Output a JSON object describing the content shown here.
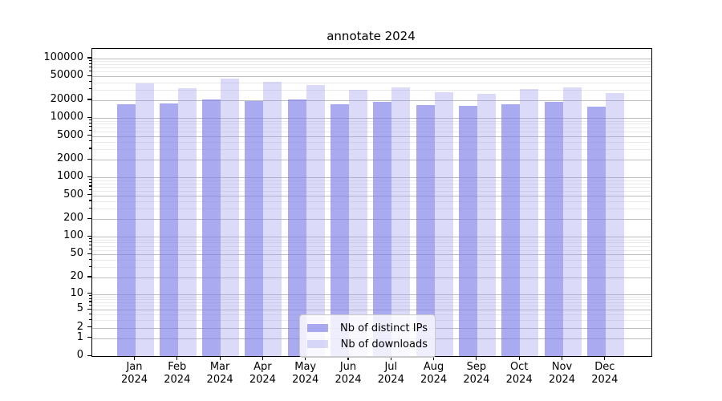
{
  "figure": {
    "background": "#ffffff",
    "plot_background": "#ffffff",
    "spine_color": "#000000"
  },
  "chart_data": {
    "type": "bar",
    "title": "annotate 2024",
    "categories": [
      "Jan",
      "Feb",
      "Mar",
      "Apr",
      "May",
      "Jun",
      "Jul",
      "Aug",
      "Sep",
      "Oct",
      "Nov",
      "Dec"
    ],
    "x_year_label": "2024",
    "series": [
      {
        "name": "Nb of distinct IPs",
        "color": "rgba(124,124,232,0.65)",
        "values": [
          17000,
          17500,
          20500,
          19400,
          20700,
          17100,
          18800,
          16400,
          16200,
          17200,
          18800,
          15600
        ]
      },
      {
        "name": "Nb of downloads",
        "color": "rgba(155,155,238,0.36)",
        "values": [
          38500,
          31900,
          46000,
          41000,
          35900,
          29900,
          32300,
          26900,
          25800,
          30500,
          33000,
          26700
        ]
      }
    ],
    "yscale": "log10(value+1)",
    "yticks": [
      0,
      1,
      2,
      5,
      10,
      20,
      50,
      100,
      200,
      500,
      1000,
      2000,
      5000,
      10000,
      20000,
      50000,
      100000
    ],
    "ylim": [
      0,
      145000
    ],
    "xlabel": "",
    "ylabel": "",
    "grid": {
      "horizontal": true,
      "major_color": "#bdbdbd",
      "minor_color": "#eaeaea",
      "minor_multipliers": [
        3,
        4,
        6,
        7,
        8,
        9
      ]
    },
    "legend": {
      "position": "lower center",
      "entries": [
        "Nb of distinct IPs",
        "Nb of downloads"
      ]
    }
  }
}
